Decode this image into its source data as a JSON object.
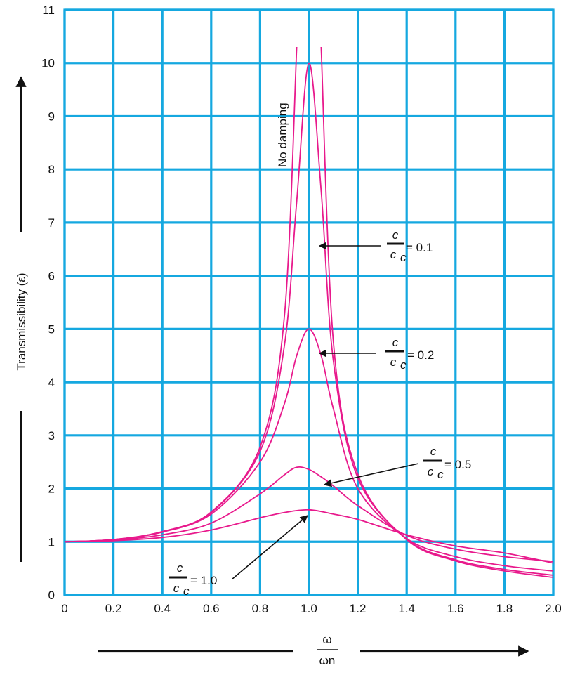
{
  "chart_data": {
    "type": "line",
    "title": "",
    "xlabel": "ω/ωn",
    "xlabel_num": "ω",
    "xlabel_den": "ωn",
    "ylabel": "Transmissibility (ε)",
    "xlim": [
      0,
      2.0
    ],
    "ylim": [
      0,
      11
    ],
    "x_ticks": [
      "0",
      "0.2",
      "0.4",
      "0.6",
      "0.8",
      "1.0",
      "1.2",
      "1.4",
      "1.6",
      "1.8",
      "2.0"
    ],
    "y_ticks": [
      "0",
      "1",
      "2",
      "3",
      "4",
      "5",
      "6",
      "7",
      "8",
      "9",
      "10",
      "11"
    ],
    "grid": true,
    "colors": {
      "grid": "#15a8e0",
      "curves": "#e8198c",
      "text": "#111111"
    },
    "series": [
      {
        "name": "No damping",
        "x": [
          0,
          0.2,
          0.4,
          0.6,
          0.8,
          0.9,
          0.95,
          1.05,
          1.1,
          1.2,
          1.4,
          1.6,
          1.8,
          2.0
        ],
        "y": [
          1.0,
          1.04,
          1.19,
          1.56,
          2.78,
          5.26,
          10.3,
          10.3,
          4.76,
          2.27,
          1.04,
          0.64,
          0.45,
          0.33
        ]
      },
      {
        "name": "c/cc = 0.1",
        "x": [
          0,
          0.2,
          0.4,
          0.6,
          0.8,
          0.9,
          0.95,
          1.0,
          1.05,
          1.1,
          1.2,
          1.4,
          1.6,
          1.8,
          2.0
        ],
        "y": [
          1.0,
          1.04,
          1.19,
          1.55,
          2.7,
          4.7,
          7.4,
          10.0,
          7.6,
          4.4,
          2.2,
          1.05,
          0.66,
          0.48,
          0.37
        ]
      },
      {
        "name": "c/cc = 0.2",
        "x": [
          0,
          0.2,
          0.4,
          0.6,
          0.8,
          0.9,
          0.95,
          1.0,
          1.05,
          1.1,
          1.2,
          1.4,
          1.6,
          1.8,
          2.0
        ],
        "y": [
          1.0,
          1.04,
          1.18,
          1.52,
          2.5,
          3.6,
          4.5,
          5.0,
          4.5,
          3.5,
          2.0,
          1.06,
          0.72,
          0.55,
          0.45
        ]
      },
      {
        "name": "c/cc = 0.5",
        "x": [
          0,
          0.2,
          0.4,
          0.6,
          0.8,
          0.9,
          0.95,
          1.0,
          1.05,
          1.1,
          1.2,
          1.4,
          1.6,
          1.8,
          2.0
        ],
        "y": [
          1.0,
          1.03,
          1.13,
          1.35,
          1.9,
          2.26,
          2.4,
          2.36,
          2.22,
          2.05,
          1.68,
          1.12,
          0.86,
          0.72,
          0.63
        ]
      },
      {
        "name": "c/cc = 1.0",
        "x": [
          0,
          0.2,
          0.4,
          0.6,
          0.8,
          0.9,
          1.0,
          1.1,
          1.2,
          1.4,
          1.6,
          1.8,
          2.0
        ],
        "y": [
          1.0,
          1.02,
          1.08,
          1.22,
          1.45,
          1.55,
          1.6,
          1.52,
          1.42,
          1.13,
          0.92,
          0.79,
          0.6
        ]
      }
    ],
    "annotations": [
      {
        "key": "nodamp",
        "text": "No damping"
      },
      {
        "key": "a01",
        "num": "c",
        "den": "cc",
        "den_sub": "c",
        "value": "= 0.1"
      },
      {
        "key": "a02",
        "num": "c",
        "den": "cc",
        "den_sub": "c",
        "value": "= 0.2"
      },
      {
        "key": "a05",
        "num": "c",
        "den": "cc",
        "den_sub": "c",
        "value": "= 0.5"
      },
      {
        "key": "a10",
        "num": "c",
        "den": "cc",
        "den_sub": "c",
        "value": "= 1.0"
      }
    ]
  }
}
